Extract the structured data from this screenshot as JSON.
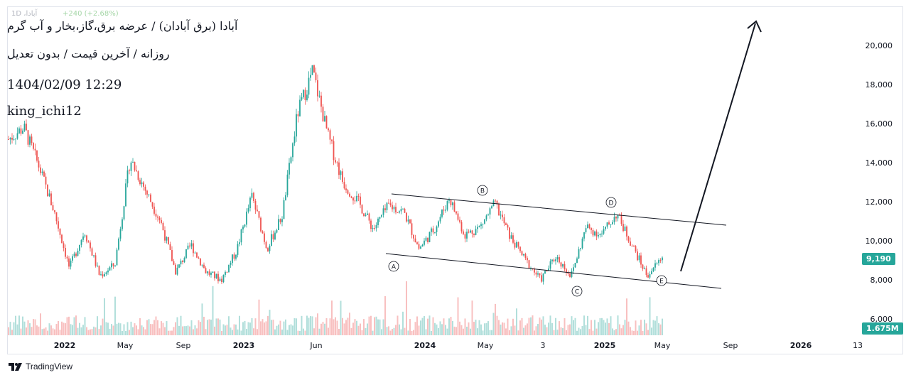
{
  "header": {
    "ghost_symbol": "آبادا، 1D",
    "ghost_change": "+240 (+2.68%)",
    "title": "آبادا (برق آبادان) / عرضه برق،گاز،بخار و آب گرم",
    "subtitle": "روزانه / آخرین قیمت / بدون تعدیل",
    "timestamp": "1404/02/09 12:29",
    "author": "king_ichi12"
  },
  "price_tags": {
    "last_price": "9,190",
    "volume": "1.675M"
  },
  "footer": {
    "logo_text": "TradingView"
  },
  "colors": {
    "up": "#26a69a",
    "down": "#ef5350",
    "vol_up": "#b2dfdb",
    "vol_down": "#f8c0c0",
    "text": "#131722"
  },
  "chart_data": {
    "type": "candlestick",
    "y_axis": {
      "min": 5500,
      "max": 22000,
      "ticks": [
        6000,
        8000,
        10000,
        12000,
        14000,
        16000,
        18000,
        20000
      ],
      "tick_labels": [
        "6,000",
        "8,000",
        "10,000",
        "12,000",
        "14,000",
        "16,000",
        "18,000",
        "20,000"
      ]
    },
    "x_axis": {
      "labels": [
        "2022",
        "May",
        "Sep",
        "2023",
        "Jun",
        "2024",
        "May",
        "3",
        "2025",
        "May",
        "Sep",
        "2026",
        "13"
      ],
      "bold": [
        "2022",
        "2023",
        "2024",
        "2025",
        "2026"
      ]
    },
    "price_path": [
      {
        "t": "2021-12",
        "v": 15200
      },
      {
        "t": "2022-01",
        "v": 15800
      },
      {
        "t": "2022-01b",
        "v": 13800
      },
      {
        "t": "2022-02",
        "v": 11500
      },
      {
        "t": "2022-02b",
        "v": 8600
      },
      {
        "t": "2022-03",
        "v": 10500
      },
      {
        "t": "2022-03b",
        "v": 8200
      },
      {
        "t": "2022-04",
        "v": 8800
      },
      {
        "t": "2022-05",
        "v": 14200
      },
      {
        "t": "2022-05b",
        "v": 12600
      },
      {
        "t": "2022-06",
        "v": 11000
      },
      {
        "t": "2022-07",
        "v": 8400
      },
      {
        "t": "2022-08",
        "v": 9800
      },
      {
        "t": "2022-09",
        "v": 8400
      },
      {
        "t": "2022-10",
        "v": 8000
      },
      {
        "t": "2022-11",
        "v": 9500
      },
      {
        "t": "2022-12",
        "v": 12300
      },
      {
        "t": "2023-01",
        "v": 9600
      },
      {
        "t": "2023-02",
        "v": 11300
      },
      {
        "t": "2023-03",
        "v": 16500
      },
      {
        "t": "2023-04",
        "v": 18700
      },
      {
        "t": "2023-05",
        "v": 15400
      },
      {
        "t": "2023-05b",
        "v": 13000
      },
      {
        "t": "2023-06",
        "v": 12000
      },
      {
        "t": "2023-07",
        "v": 10600
      },
      {
        "t": "2023-08",
        "v": 11800
      },
      {
        "t": "2023-09",
        "v": 11500
      },
      {
        "t": "2023-10",
        "v": 9600
      },
      {
        "t": "2023-11",
        "v": 10600
      },
      {
        "t": "2023-12",
        "v": 12200
      },
      {
        "t": "2024-01",
        "v": 10300
      },
      {
        "t": "2024-02",
        "v": 10700
      },
      {
        "t": "2024-03",
        "v": 11900
      },
      {
        "t": "2024-04",
        "v": 10200
      },
      {
        "t": "2024-05",
        "v": 9000
      },
      {
        "t": "2024-06",
        "v": 8000
      },
      {
        "t": "2024-07",
        "v": 9200
      },
      {
        "t": "2024-08",
        "v": 8200
      },
      {
        "t": "2024-09",
        "v": 10700
      },
      {
        "t": "2024-10",
        "v": 10300
      },
      {
        "t": "2024-11",
        "v": 11400
      },
      {
        "t": "2024-12",
        "v": 9800
      },
      {
        "t": "2025-01",
        "v": 8200
      },
      {
        "t": "2025-02",
        "v": 9190
      }
    ],
    "annotations": [
      {
        "label": "A",
        "t": "2023-12",
        "price": 8900
      },
      {
        "label": "B",
        "t": "2024-05",
        "price": 12600
      },
      {
        "label": "C",
        "t": "2024-10",
        "price": 7500
      },
      {
        "label": "D",
        "t": "2025-02",
        "price": 12000
      },
      {
        "label": "E",
        "t": "2025-05",
        "price": 8000
      }
    ],
    "last_price": 9190,
    "last_volume": "1.675M"
  }
}
